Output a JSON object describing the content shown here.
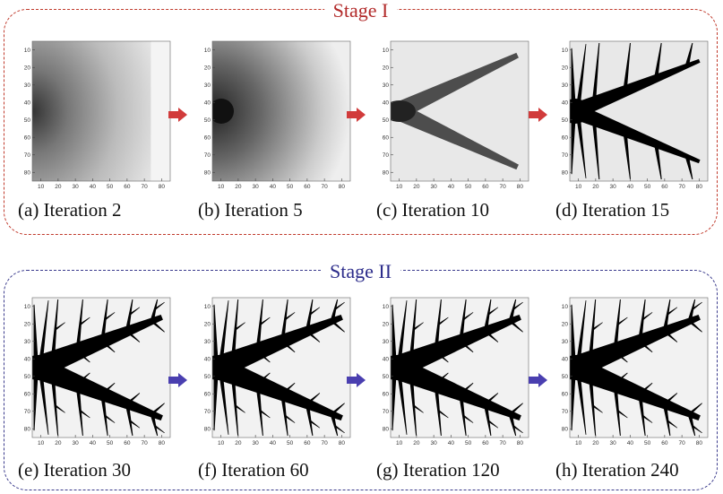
{
  "stages": [
    {
      "title": "Stage I",
      "color": "#b22a2a",
      "arrow_color": "#d13b3b",
      "panels": [
        {
          "caption": "(a) Iteration 2",
          "iteration": 2
        },
        {
          "caption": "(b) Iteration 5",
          "iteration": 5
        },
        {
          "caption": "(c) Iteration 10",
          "iteration": 10
        },
        {
          "caption": "(d) Iteration 15",
          "iteration": 15
        }
      ]
    },
    {
      "title": "Stage II",
      "color": "#2b2b8a",
      "arrow_color": "#4a3fb0",
      "panels": [
        {
          "caption": "(e) Iteration 30",
          "iteration": 30
        },
        {
          "caption": "(f) Iteration 60",
          "iteration": 60
        },
        {
          "caption": "(g) Iteration 120",
          "iteration": 120
        },
        {
          "caption": "(h) Iteration 240",
          "iteration": 240
        }
      ]
    }
  ],
  "axis": {
    "y_ticks": [
      "10",
      "20",
      "30",
      "40",
      "50",
      "60",
      "70",
      "80"
    ],
    "x_ticks": [
      "10",
      "20",
      "30",
      "40",
      "50",
      "60",
      "70",
      "80"
    ]
  }
}
